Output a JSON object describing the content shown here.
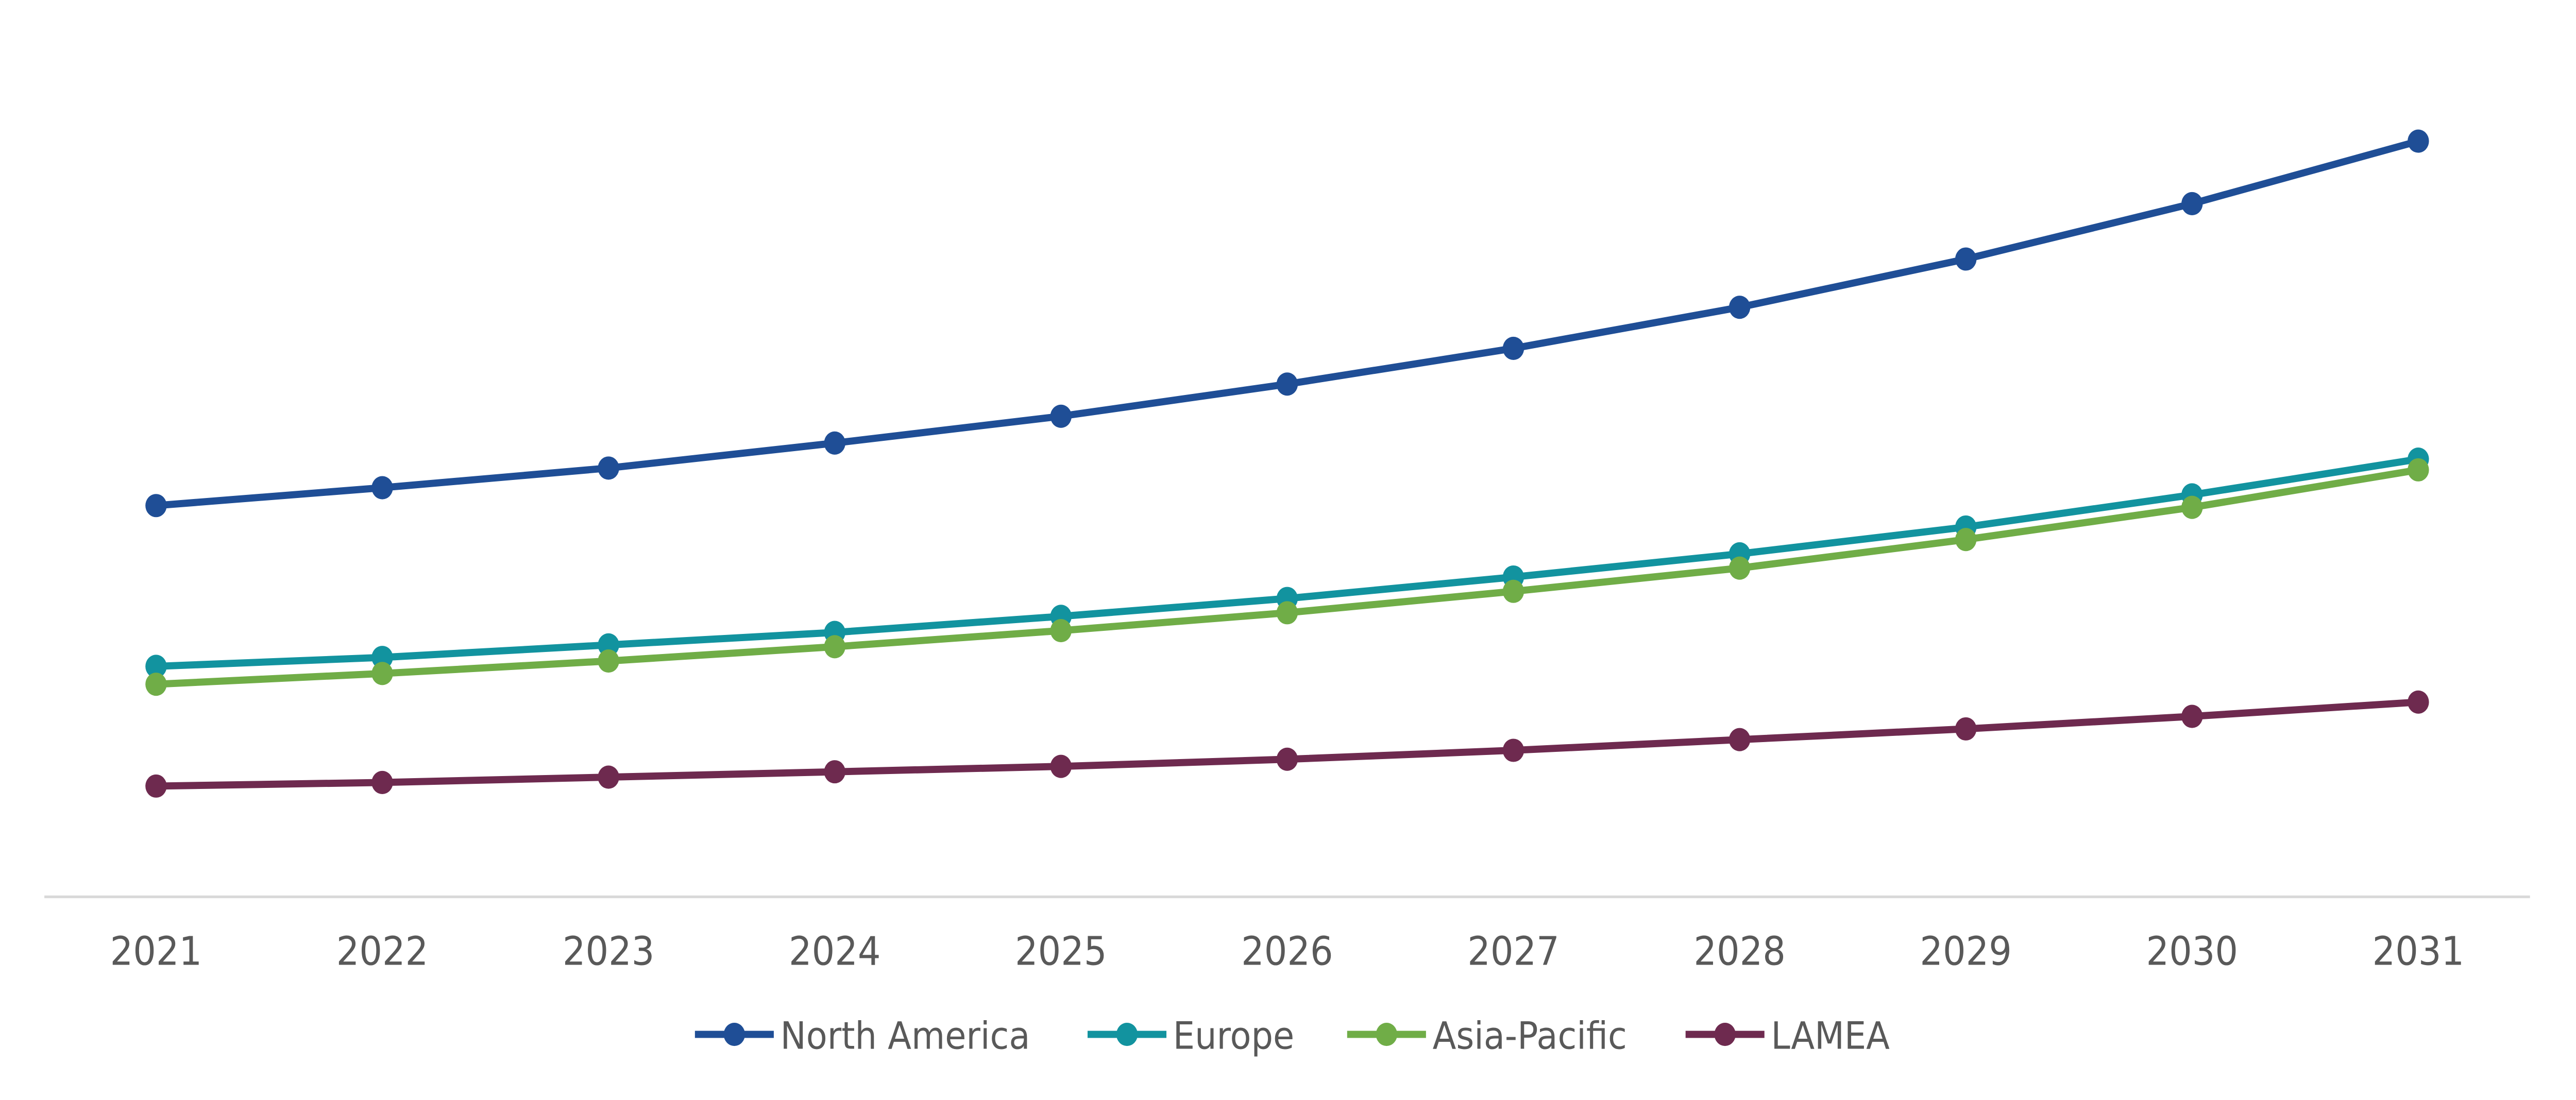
{
  "chart_data": {
    "type": "line",
    "title": "",
    "xlabel": "",
    "ylabel": "",
    "x": [
      "2021",
      "2022",
      "2023",
      "2024",
      "2025",
      "2026",
      "2027",
      "2028",
      "2029",
      "2030",
      "2031"
    ],
    "ylim": [
      0,
      480
    ],
    "grid": false,
    "legend_placement": "bottom-center",
    "series": [
      {
        "name": "North America",
        "color": "#1F4E96",
        "values": [
          219,
          229,
          240,
          254,
          269,
          287,
          307,
          330,
          357,
          388,
          423
        ]
      },
      {
        "name": "Europe",
        "color": "#12939F",
        "values": [
          129,
          134,
          141,
          148,
          157,
          167,
          179,
          192,
          207,
          225,
          245
        ]
      },
      {
        "name": "Asia-Pacific",
        "color": "#70AD47",
        "values": [
          119,
          125,
          132,
          140,
          149,
          159,
          171,
          184,
          200,
          218,
          239
        ]
      },
      {
        "name": "LAMEA",
        "color": "#6E2A4F",
        "values": [
          62,
          64,
          67,
          70,
          73,
          77,
          82,
          88,
          94,
          101,
          109
        ]
      }
    ]
  }
}
